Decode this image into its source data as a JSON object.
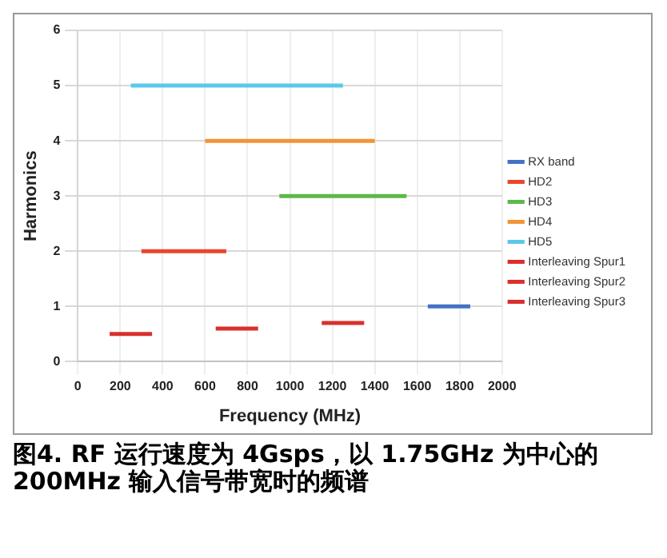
{
  "chart_data": {
    "type": "line",
    "title": "图4. RF 运行速度为 4Gsps，以 1.75GHz 为中心的 200MHz 输入信号带宽时的频谱",
    "xlabel": "Frequency (MHz)",
    "ylabel": "Harmonics",
    "xlim": [
      0,
      2000
    ],
    "xticks": [
      0,
      200,
      400,
      600,
      800,
      1000,
      1200,
      1400,
      1600,
      1800,
      2000
    ],
    "ylim": [
      0,
      6
    ],
    "yticks": [
      0,
      1,
      2,
      3,
      4,
      5,
      6
    ],
    "grid": true,
    "legend": "right",
    "marker": "none",
    "line_style": "solid",
    "series": [
      {
        "name": "RX band",
        "color": "#4472c4",
        "x": [
          1650,
          1850
        ],
        "values": [
          1,
          1
        ]
      },
      {
        "name": "HD2",
        "color": "#e8462a",
        "x": [
          300,
          700
        ],
        "values": [
          2,
          2
        ]
      },
      {
        "name": "HD3",
        "color": "#5cb84a",
        "x": [
          950,
          1550
        ],
        "values": [
          3,
          3
        ]
      },
      {
        "name": "HD4",
        "color": "#f29436",
        "x": [
          600,
          1400
        ],
        "values": [
          4,
          4
        ]
      },
      {
        "name": "HD5",
        "color": "#5bc8ea",
        "x": [
          250,
          1250
        ],
        "values": [
          5,
          5
        ]
      },
      {
        "name": "Interleaving Spur1",
        "color": "#d9302c",
        "x": [
          150,
          350
        ],
        "values": [
          0.5,
          0.5
        ]
      },
      {
        "name": "Interleaving Spur2",
        "color": "#d9302c",
        "x": [
          650,
          850
        ],
        "values": [
          0.6,
          0.6
        ]
      },
      {
        "name": "Interleaving Spur3",
        "color": "#d9302c",
        "x": [
          1150,
          1350
        ],
        "values": [
          0.7,
          0.7
        ]
      }
    ]
  }
}
